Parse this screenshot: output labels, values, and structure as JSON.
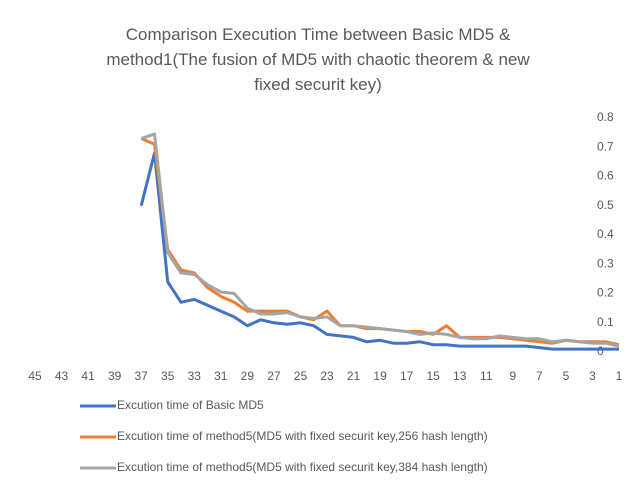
{
  "chart_data": {
    "type": "line",
    "title": "Comparison Execution Time between Basic MD5 & method1(The fusion of MD5 with chaotic theorem & new fixed securit key)",
    "categories": [
      45,
      null,
      43,
      null,
      41,
      null,
      39,
      null,
      37,
      null,
      35,
      null,
      33,
      null,
      31,
      null,
      29,
      null,
      27,
      null,
      25,
      null,
      23,
      null,
      21,
      null,
      19,
      null,
      17,
      null,
      15,
      null,
      13,
      null,
      11,
      null,
      9,
      null,
      7,
      null,
      5,
      null,
      3,
      null,
      1
    ],
    "series": [
      {
        "name": "Excution time of Basic MD5",
        "color": "#4472c4",
        "values": [
          null,
          null,
          null,
          null,
          null,
          null,
          null,
          null,
          0.5,
          0.68,
          0.24,
          0.17,
          0.18,
          0.16,
          0.14,
          0.12,
          0.09,
          0.11,
          0.1,
          0.095,
          0.1,
          0.09,
          0.06,
          0.055,
          0.05,
          0.035,
          0.04,
          0.03,
          0.03,
          0.035,
          0.025,
          0.025,
          0.02,
          0.02,
          0.02,
          0.02,
          0.02,
          0.02,
          0.015,
          0.01,
          0.01,
          0.01,
          0.01,
          0.01,
          0.01
        ]
      },
      {
        "name": "Excution time of method5(MD5 with fixed securit key,256 hash length)",
        "color": "#ed7d31",
        "values": [
          null,
          null,
          null,
          null,
          null,
          null,
          null,
          null,
          0.73,
          0.71,
          0.35,
          0.28,
          0.27,
          0.22,
          0.19,
          0.17,
          0.14,
          0.14,
          0.14,
          0.14,
          0.12,
          0.11,
          0.14,
          0.09,
          0.09,
          0.08,
          0.08,
          0.075,
          0.07,
          0.07,
          0.06,
          0.09,
          0.05,
          0.05,
          0.05,
          0.05,
          0.045,
          0.04,
          0.035,
          0.03,
          0.04,
          0.035,
          0.035,
          0.035,
          0.025
        ]
      },
      {
        "name": "Excution time of method5(MD5 with fixed securit key,384 hash length)",
        "color": "#a5a5a5",
        "values": [
          null,
          null,
          null,
          null,
          null,
          null,
          null,
          null,
          0.73,
          0.745,
          0.34,
          0.27,
          0.265,
          0.23,
          0.205,
          0.2,
          0.15,
          0.13,
          0.13,
          0.135,
          0.12,
          0.115,
          0.12,
          0.09,
          0.09,
          0.085,
          0.08,
          0.075,
          0.07,
          0.06,
          0.065,
          0.06,
          0.05,
          0.045,
          0.045,
          0.055,
          0.05,
          0.045,
          0.045,
          0.035,
          0.04,
          0.035,
          0.03,
          0.03,
          0.02
        ]
      }
    ],
    "ylim": [
      0,
      0.8
    ],
    "yticks": [
      0,
      0.1,
      0.2,
      0.3,
      0.4,
      0.5,
      0.6,
      0.7,
      0.8
    ],
    "grid": false
  }
}
